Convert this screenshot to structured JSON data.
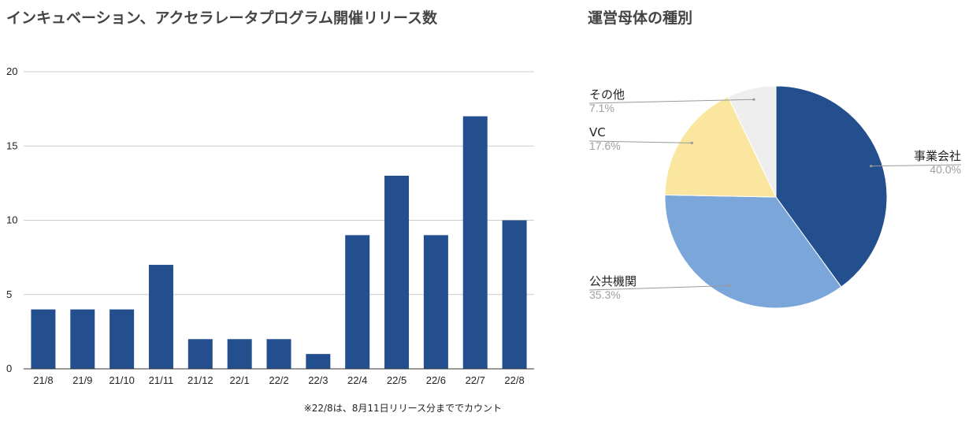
{
  "chart_data": [
    {
      "type": "bar",
      "title": "インキュベーション、アクセラレータプログラム開催リリース数",
      "categories": [
        "21/8",
        "21/9",
        "21/10",
        "21/11",
        "21/12",
        "22/1",
        "22/2",
        "22/3",
        "22/4",
        "22/5",
        "22/6",
        "22/7",
        "22/8"
      ],
      "values": [
        4,
        4,
        4,
        7,
        2,
        2,
        2,
        1,
        9,
        13,
        9,
        17,
        10
      ],
      "ylim": [
        0,
        20
      ],
      "yticks": [
        0,
        5,
        10,
        15,
        20
      ],
      "xlabel": "",
      "ylabel": "",
      "grid": true,
      "bar_color": "#234f8e",
      "note": "※22/8は、8月11日リリース分まででカウント"
    },
    {
      "type": "pie",
      "title": "運営母体の種別",
      "slices": [
        {
          "label": "事業会社",
          "value": 40.0,
          "percent_label": "40.0%",
          "color": "#234f8e"
        },
        {
          "label": "公共機関",
          "value": 35.3,
          "percent_label": "35.3%",
          "color": "#7ba6d9"
        },
        {
          "label": "VC",
          "value": 17.6,
          "percent_label": "17.6%",
          "color": "#fbe6a0"
        },
        {
          "label": "その他",
          "value": 7.1,
          "percent_label": "7.1%",
          "color": "#eeeeee"
        }
      ]
    }
  ]
}
